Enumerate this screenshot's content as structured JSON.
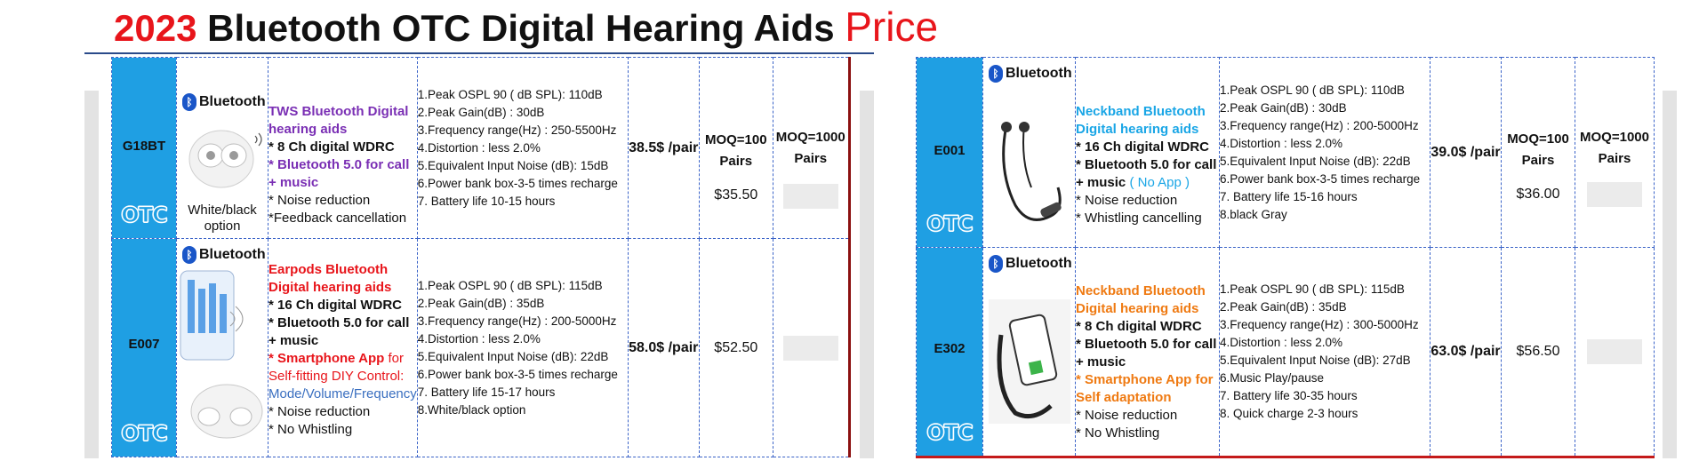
{
  "title": {
    "year": "2023",
    "main": "Bluetooth OTC Digital Hearing Aids",
    "price": "Price"
  },
  "common": {
    "bluetooth_word": "Bluetooth",
    "bluetooth_symbol": "ᛒ",
    "otc": "OTC",
    "moq100": "MOQ=100 Pairs",
    "moq1000": "MOQ=1000 Pairs"
  },
  "left_products": [
    {
      "model": "G18BT",
      "caption": "White/black option",
      "title": "TWS Bluetooth Digital hearing aids",
      "features": [
        "* 8 Ch digital WDRC",
        "* Bluetooth 5.0 for call + music",
        "* Noise reduction",
        "*Feedback cancellation"
      ],
      "specs": [
        "1.Peak OSPL 90 ( dB SPL): 110dB",
        "2.Peak  Gain(dB) : 30dB",
        "3.Frequency range(Hz) : 250-5500Hz",
        "4.Distortion :  less 2.0%",
        "5.Equivalent Input Noise  (dB): 15dB",
        "6.Power bank box-3-5 times recharge",
        "7. Battery life 10-15 hours"
      ],
      "unit_price": "38.5$ /pair",
      "moq100_price": "$35.50"
    },
    {
      "model": "E007",
      "caption": "",
      "title": "Earpods Bluetooth Digital hearing aids",
      "features": [
        "* 16 Ch digital WDRC",
        "* Bluetooth 5.0 for call + music",
        "* Smartphone App",
        "for Self-fitting DIY Control:",
        "Mode/Volume/Frequency",
        "* Noise reduction",
        "* No Whistling"
      ],
      "specs": [
        "1.Peak OSPL 90 ( dB SPL): 115dB",
        "2.Peak  Gain(dB) : 35dB",
        "3.Frequency range(Hz) : 200-5000Hz",
        "4.Distortion :  less 2.0%",
        "5.Equivalent Input Noise  (dB): 22dB",
        "6.Power bank box-3-5 times recharge",
        "7. Battery life 15-17 hours",
        "8.White/black option"
      ],
      "unit_price": "58.0$ /pair",
      "moq100_price": "$52.50"
    }
  ],
  "right_products": [
    {
      "model": "E001",
      "title": "Neckband Bluetooth Digital hearing aids",
      "features": [
        "* 16 Ch digital WDRC",
        "* Bluetooth 5.0 for call + music",
        "( No App )",
        "* Noise reduction",
        "* Whistling cancelling"
      ],
      "specs": [
        "1.Peak OSPL 90 ( dB SPL): 110dB",
        "2.Peak  Gain(dB) : 30dB",
        "3.Frequency range(Hz) : 200-5000Hz",
        "4.Distortion :  less 2.0%",
        "5.Equivalent Input Noise  (dB): 22dB",
        "6.Power bank box-3-5 times recharge",
        "7. Battery life 15-16 hours",
        "8.black Gray"
      ],
      "unit_price": "39.0$ /pair",
      "moq100_price": "$36.00"
    },
    {
      "model": "E302",
      "title": "Neckband Bluetooth Digital hearing aids",
      "features": [
        "* 8 Ch digital WDRC",
        "* Bluetooth 5.0 for call + music",
        "* Smartphone App for Self adaptation",
        "* Noise reduction",
        "* No Whistling"
      ],
      "specs": [
        "1.Peak OSPL 90 ( dB SPL): 115dB",
        "2.Peak  Gain(dB) : 35dB",
        "3.Frequency range(Hz) : 300-5000Hz",
        "4.Distortion :  less 2.0%",
        "5.Equivalent Input Noise  (dB): 27dB",
        "6.Music Play/pause",
        "7. Battery life 30-35 hours",
        "8. Quick charge 2-3 hours"
      ],
      "unit_price": "63.0$ /pair",
      "moq100_price": "$56.50"
    }
  ]
}
